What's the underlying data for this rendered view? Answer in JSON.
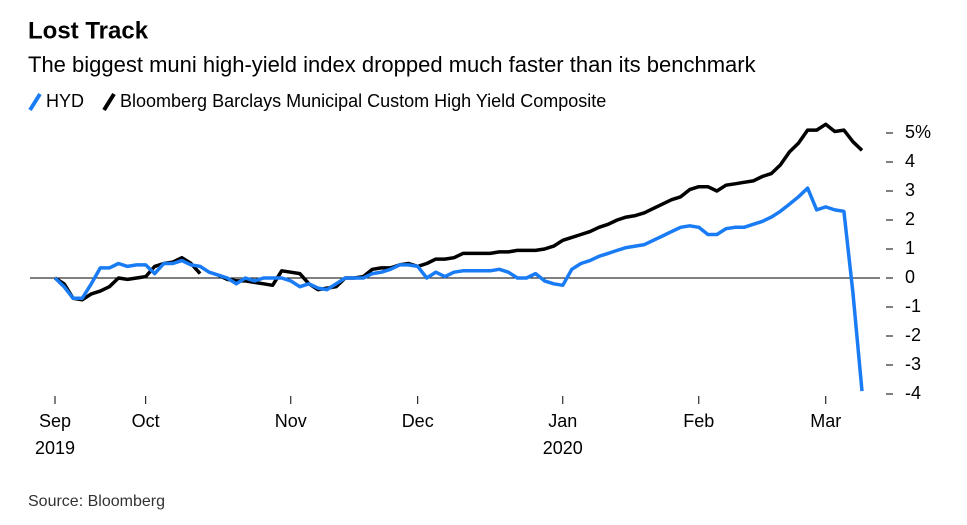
{
  "chart_data": {
    "type": "line",
    "title": "Lost Track",
    "subtitle": "The biggest muni high-yield index dropped much faster than its benchmark",
    "source": "Source: Bloomberg",
    "categories": [
      "Sep 2019",
      null,
      null,
      null,
      null,
      null,
      null,
      null,
      null,
      null,
      "Oct",
      null,
      null,
      null,
      null,
      null,
      null,
      null,
      null,
      null,
      null,
      null,
      null,
      null,
      null,
      null,
      "Nov",
      null,
      null,
      null,
      null,
      null,
      null,
      null,
      null,
      null,
      null,
      null,
      null,
      null,
      "Dec",
      null,
      null,
      null,
      null,
      null,
      null,
      null,
      null,
      null,
      null,
      null,
      null,
      null,
      null,
      null,
      "Jan 2020",
      null,
      null,
      null,
      null,
      null,
      null,
      null,
      null,
      null,
      null,
      null,
      null,
      null,
      null,
      "Feb",
      null,
      null,
      null,
      null,
      null,
      null,
      null,
      null,
      null,
      null,
      null,
      null,
      null,
      "Mar",
      null,
      null,
      null,
      null
    ],
    "series": [
      {
        "name": "HYD",
        "color": "#1a7cf5",
        "values": [
          0,
          -0.3,
          -0.7,
          -0.7,
          -0.2,
          0.35,
          0.35,
          0.5,
          0.4,
          0.45,
          0.45,
          0.15,
          0.5,
          0.5,
          0.6,
          0.45,
          0.4,
          0.2,
          0.1,
          0,
          -0.2,
          0,
          -0.1,
          0,
          0,
          0,
          -0.1,
          -0.3,
          -0.2,
          -0.35,
          -0.4,
          -0.2,
          0,
          0,
          0,
          0.15,
          0.2,
          0.3,
          0.45,
          0.45,
          0.4,
          0,
          0.2,
          0.05,
          0.2,
          0.25,
          0.25,
          0.25,
          0.25,
          0.3,
          0.2,
          0,
          0,
          0.15,
          -0.1,
          -0.2,
          -0.25,
          0.3,
          0.5,
          0.6,
          0.75,
          0.85,
          0.95,
          1.05,
          1.1,
          1.15,
          1.3,
          1.45,
          1.6,
          1.75,
          1.8,
          1.75,
          1.5,
          1.5,
          1.7,
          1.75,
          1.75,
          1.85,
          1.95,
          2.1,
          2.3,
          2.55,
          2.8,
          3.1,
          2.35,
          2.45,
          2.35,
          2.3,
          -0.5,
          -3.9
        ]
      },
      {
        "name": "Bloomberg Barclays Municipal Custom High Yield Composite",
        "color": "#000000",
        "values": [
          0,
          -0.2,
          -0.7,
          -0.75,
          -0.55,
          -0.45,
          -0.3,
          0,
          -0.05,
          0,
          0.05,
          0.4,
          0.5,
          0.55,
          0.7,
          0.5,
          0.15,
          null,
          0.1,
          -0.05,
          -0.1,
          -0.1,
          -0.15,
          -0.2,
          -0.25,
          0.25,
          0.2,
          0.15,
          -0.2,
          -0.4,
          -0.35,
          -0.3,
          0,
          0,
          0.05,
          0.3,
          0.35,
          0.35,
          0.45,
          0.5,
          0.4,
          0.5,
          0.65,
          0.65,
          0.7,
          0.85,
          0.85,
          0.85,
          0.85,
          0.9,
          0.9,
          0.95,
          0.95,
          0.95,
          1,
          1.1,
          1.3,
          1.4,
          1.5,
          1.6,
          1.75,
          1.85,
          2,
          2.1,
          2.15,
          2.25,
          2.4,
          2.55,
          2.7,
          2.8,
          3.05,
          3.15,
          3.15,
          3,
          3.2,
          3.25,
          3.3,
          3.35,
          3.5,
          3.6,
          3.9,
          4.35,
          4.65,
          5.1,
          5.1,
          5.3,
          5.05,
          5.1,
          4.7,
          4.4
        ]
      }
    ],
    "ylim": [
      -4.5,
      5.5
    ],
    "yticks": [
      -4,
      -3,
      -2,
      -1,
      0,
      1,
      2,
      3,
      4,
      {
        "value": 5,
        "label": "5%"
      }
    ]
  }
}
